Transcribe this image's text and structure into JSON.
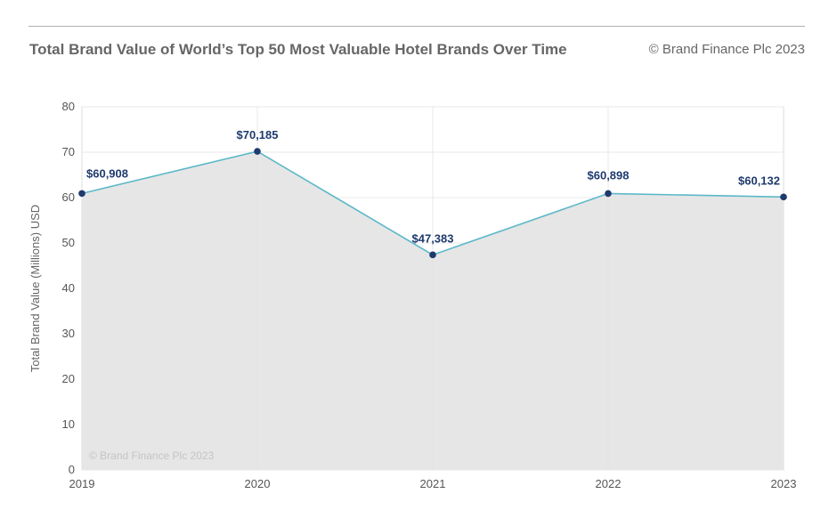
{
  "header": {
    "title": "Total Brand Value of World’s Top 50 Most Valuable Hotel Brands Over Time",
    "copyright": "© Brand Finance Plc 2023"
  },
  "chart_data": {
    "type": "area",
    "title": "Total Brand Value of World’s Top 50 Most Valuable Hotel Brands Over Time",
    "xlabel": "",
    "ylabel": "Total Brand Value (Millions) USD",
    "categories": [
      "2019",
      "2020",
      "2021",
      "2022",
      "2023"
    ],
    "values": [
      60.908,
      70.185,
      47.383,
      60.898,
      60.132
    ],
    "data_labels": [
      "$60,908",
      "$70,185",
      "$47,383",
      "$60,898",
      "$60,132"
    ],
    "ylim": [
      0,
      80
    ],
    "yticks": [
      "0",
      "10",
      "20",
      "30",
      "40",
      "50",
      "60",
      "70",
      "80"
    ],
    "grid": true,
    "watermark": "© Brand Finance Plc 2023",
    "colors": {
      "line": "#5bb8c9",
      "marker": "#1f3a6e",
      "fill": "#e6e6e6",
      "grid": "#dcdcdc"
    }
  }
}
